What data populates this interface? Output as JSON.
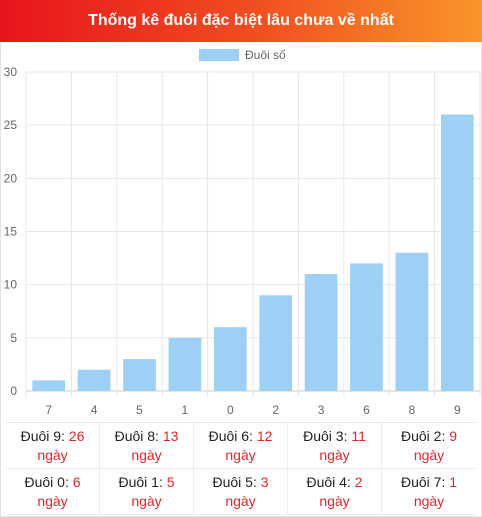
{
  "header": {
    "title": "Thống kê đuôi đặc biệt lâu chưa về nhất"
  },
  "chart_data": {
    "type": "bar",
    "series": [
      {
        "name": "Đuôi số",
        "values": [
          1,
          2,
          3,
          5,
          6,
          9,
          11,
          12,
          13,
          26
        ]
      }
    ],
    "categories": [
      "7",
      "4",
      "5",
      "1",
      "0",
      "2",
      "3",
      "6",
      "8",
      "9"
    ],
    "ylim": [
      0,
      30
    ],
    "yticks": [
      0,
      5,
      10,
      15,
      20,
      25,
      30
    ],
    "grid": true,
    "legend": "top",
    "color": "#9ecff5"
  },
  "summary": {
    "unit": "ngày",
    "items": [
      {
        "label": "Đuôi 9:",
        "count": "26"
      },
      {
        "label": "Đuôi 8:",
        "count": "13"
      },
      {
        "label": "Đuôi 6:",
        "count": "12"
      },
      {
        "label": "Đuôi 3:",
        "count": "11"
      },
      {
        "label": "Đuôi 2:",
        "count": "9"
      },
      {
        "label": "Đuôi 0:",
        "count": "6"
      },
      {
        "label": "Đuôi 1:",
        "count": "5"
      },
      {
        "label": "Đuôi 5:",
        "count": "3"
      },
      {
        "label": "Đuôi 4:",
        "count": "2"
      },
      {
        "label": "Đuôi 7:",
        "count": "1"
      }
    ]
  }
}
